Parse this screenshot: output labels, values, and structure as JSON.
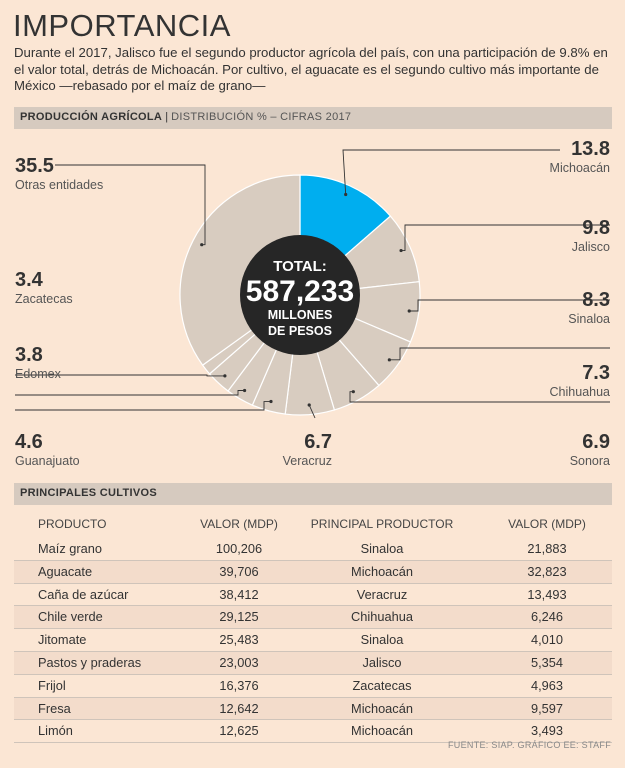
{
  "title": "IMPORTANCIA",
  "intro": "Durante el 2017, Jalisco fue el segundo productor agrícola del país, con una participación de 9.8% en el valor total, detrás de Michoacán. Por cultivo, el aguacate es el segundo cultivo más importante de México —rebasado por el maíz de grano—",
  "section1": {
    "label": "PRODUCCIÓN AGRÍCOLA",
    "separator": "|",
    "sub": "DISTRIBUCIÓN % – CIFRAS 2017"
  },
  "section2": {
    "label": "PRINCIPALES CULTIVOS"
  },
  "colors": {
    "highlight": "#00aeef",
    "slice": "#d8ccc0",
    "center": "#262626",
    "background": "#fbe6d4"
  },
  "chart_data": {
    "type": "pie",
    "center": {
      "line1": "TOTAL:",
      "line2": "587,233",
      "line3": "MILLONES",
      "line4": "DE PESOS"
    },
    "slices": [
      {
        "name": "Michoacán",
        "value": 13.8,
        "label": "13.8"
      },
      {
        "name": "Jalisco",
        "value": 9.8,
        "label": "9.8"
      },
      {
        "name": "Sinaloa",
        "value": 8.3,
        "label": "8.3"
      },
      {
        "name": "Chihuahua",
        "value": 7.3,
        "label": "7.3"
      },
      {
        "name": "Sonora",
        "value": 6.9,
        "label": "6.9"
      },
      {
        "name": "Veracruz",
        "value": 6.7,
        "label": "6.7"
      },
      {
        "name": "Guanajuato",
        "value": 4.6,
        "label": "4.6"
      },
      {
        "name": "Edomex",
        "value": 3.8,
        "label": "3.8"
      },
      {
        "name": "Zacatecas",
        "value": 3.4,
        "label": "3.4"
      },
      {
        "name": "",
        "value": 1.5,
        "label": ""
      },
      {
        "name": "Otras entidades",
        "value": 35.5,
        "label": "35.5"
      }
    ]
  },
  "table": {
    "headers": [
      "PRODUCTO",
      "VALOR (MDP)",
      "PRINCIPAL PRODUCTOR",
      "VALOR (MDP)"
    ],
    "rows": [
      [
        "Maíz grano",
        "100,206",
        "Sinaloa",
        "21,883"
      ],
      [
        "Aguacate",
        "39,706",
        "Michoacán",
        "32,823"
      ],
      [
        "Caña de azúcar",
        "38,412",
        "Veracruz",
        "13,493"
      ],
      [
        "Chile verde",
        "29,125",
        "Chihuahua",
        "6,246"
      ],
      [
        "Jitomate",
        "25,483",
        "Sinaloa",
        "4,010"
      ],
      [
        "Pastos y praderas",
        "23,003",
        "Jalisco",
        "5,354"
      ],
      [
        "Frijol",
        "16,376",
        "Zacatecas",
        "4,963"
      ],
      [
        "Fresa",
        "12,642",
        "Michoacán",
        "9,597"
      ],
      [
        "Limón",
        "12,625",
        "Michoacán",
        "3,493"
      ]
    ]
  },
  "footer": "FUENTE: SIAP. GRÁFICO EE: STAFF"
}
